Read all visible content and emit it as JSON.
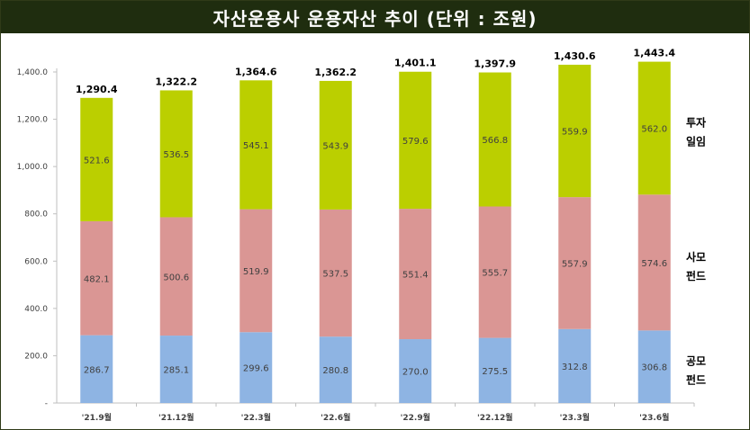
{
  "title": "자산운용사 운용자산 추이 (단위 : 조원)",
  "chart_data": {
    "type": "bar",
    "stacked": true,
    "categories": [
      "'21.9월",
      "'21.12월",
      "'22.3월",
      "'22.6월",
      "'22.9월",
      "'22.12월",
      "'23.3월",
      "'23.6월"
    ],
    "series": [
      {
        "name": "공모 펀드",
        "label_lines": [
          "공모",
          "펀드"
        ],
        "color": "#8eb4e3",
        "values": [
          286.7,
          285.1,
          299.6,
          280.8,
          270.0,
          275.5,
          312.8,
          306.8
        ]
      },
      {
        "name": "사모 펀드",
        "label_lines": [
          "사모",
          "펀드"
        ],
        "color": "#da9694",
        "values": [
          482.1,
          500.6,
          519.9,
          537.5,
          551.4,
          555.7,
          557.9,
          574.6
        ]
      },
      {
        "name": "투자 일임",
        "label_lines": [
          "투자",
          "일임"
        ],
        "color": "#bbcf00",
        "values": [
          521.6,
          536.5,
          545.1,
          543.9,
          579.6,
          566.8,
          559.9,
          562.0
        ]
      }
    ],
    "totals": [
      "1,290.4",
      "1,322.2",
      "1,364.6",
      "1,362.2",
      "1,401.1",
      "1,397.9",
      "1,430.6",
      "1,443.4"
    ],
    "value_labels": [
      [
        "286.7",
        "285.1",
        "299.6",
        "280.8",
        "270.0",
        "275.5",
        "312.8",
        "306.8"
      ],
      [
        "482.1",
        "500.6",
        "519.9",
        "537.5",
        "551.4",
        "555.7",
        "557.9",
        "574.6"
      ],
      [
        "521.6",
        "536.5",
        "545.1",
        "543.9",
        "579.6",
        "566.8",
        "559.9",
        "562.0"
      ]
    ],
    "ylim": [
      0,
      1400
    ],
    "y_ticks": [
      0,
      200,
      400,
      600,
      800,
      1000,
      1200,
      1400
    ],
    "y_tick_labels": [
      "-",
      "200.0",
      "400.0",
      "600.0",
      "800.0",
      "1,000.0",
      "1,200.0",
      "1,400.0"
    ],
    "grid": false,
    "legend": "right"
  }
}
